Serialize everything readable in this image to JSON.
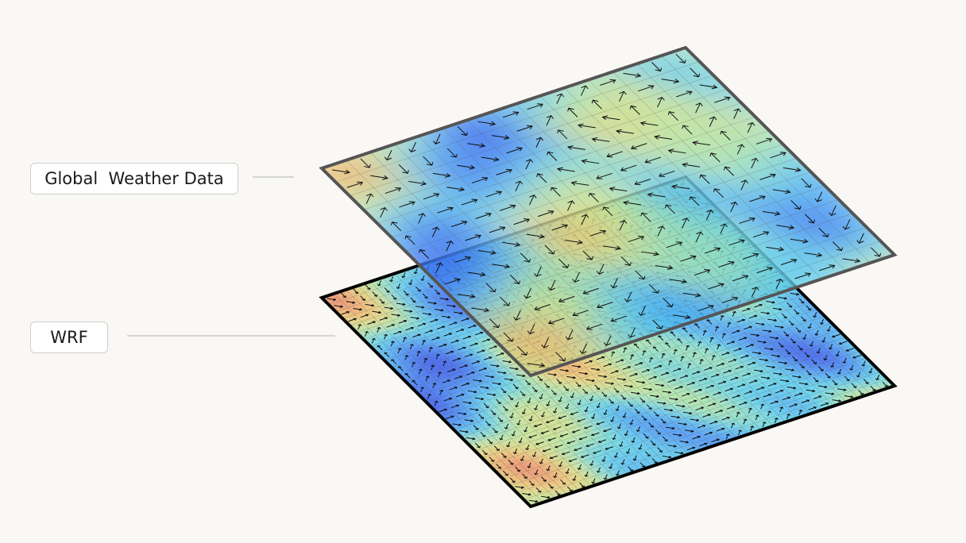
{
  "labels": [
    {
      "text": "Global  Weather Data"
    },
    {
      "text": "WRF"
    }
  ]
}
